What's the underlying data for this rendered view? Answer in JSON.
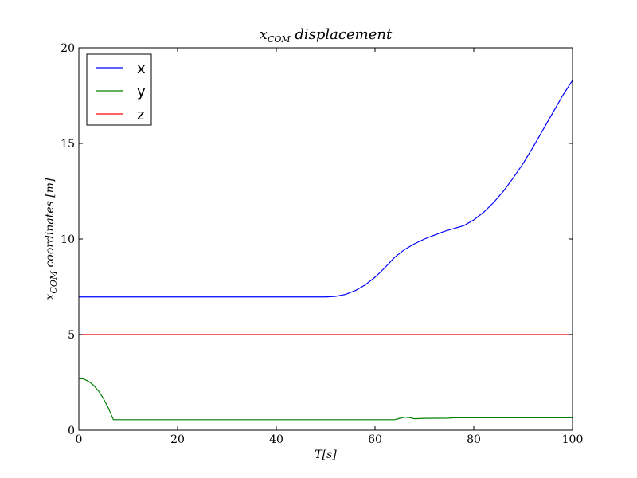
{
  "chart_data": {
    "type": "line",
    "title": {
      "main": "x",
      "subscript": "COM",
      "rest": " displacement"
    },
    "xlabel": "T[s]",
    "ylabel": {
      "main": "x",
      "subscript": "COM",
      "rest": " coordinates [m]"
    },
    "xlim": [
      0,
      100
    ],
    "ylim": [
      0,
      20
    ],
    "xticks": [
      0,
      20,
      40,
      60,
      80,
      100
    ],
    "yticks": [
      0,
      5,
      10,
      15,
      20
    ],
    "grid": false,
    "legend_position": "top-left",
    "series": [
      {
        "name": "x",
        "color": "#0000ff",
        "points": [
          [
            0,
            6.97
          ],
          [
            10,
            6.97
          ],
          [
            20,
            6.97
          ],
          [
            30,
            6.97
          ],
          [
            40,
            6.97
          ],
          [
            50,
            6.97
          ],
          [
            52,
            7.0
          ],
          [
            54,
            7.1
          ],
          [
            56,
            7.3
          ],
          [
            58,
            7.6
          ],
          [
            60,
            8.0
          ],
          [
            62,
            8.5
          ],
          [
            64,
            9.05
          ],
          [
            66,
            9.45
          ],
          [
            68,
            9.75
          ],
          [
            70,
            10.0
          ],
          [
            72,
            10.2
          ],
          [
            74,
            10.4
          ],
          [
            76,
            10.55
          ],
          [
            78,
            10.7
          ],
          [
            80,
            11.0
          ],
          [
            82,
            11.4
          ],
          [
            84,
            11.9
          ],
          [
            86,
            12.5
          ],
          [
            88,
            13.2
          ],
          [
            90,
            13.95
          ],
          [
            92,
            14.8
          ],
          [
            94,
            15.7
          ],
          [
            96,
            16.6
          ],
          [
            98,
            17.5
          ],
          [
            100,
            18.3
          ]
        ]
      },
      {
        "name": "y",
        "color": "#008000",
        "points": [
          [
            0,
            2.7
          ],
          [
            1,
            2.68
          ],
          [
            2,
            2.55
          ],
          [
            3,
            2.35
          ],
          [
            4,
            2.05
          ],
          [
            5,
            1.65
          ],
          [
            6,
            1.15
          ],
          [
            7,
            0.55
          ],
          [
            10,
            0.55
          ],
          [
            20,
            0.55
          ],
          [
            30,
            0.55
          ],
          [
            40,
            0.55
          ],
          [
            50,
            0.55
          ],
          [
            60,
            0.55
          ],
          [
            64,
            0.55
          ],
          [
            65,
            0.62
          ],
          [
            66,
            0.68
          ],
          [
            67,
            0.66
          ],
          [
            68,
            0.6
          ],
          [
            70,
            0.62
          ],
          [
            75,
            0.63
          ],
          [
            76,
            0.65
          ],
          [
            80,
            0.65
          ],
          [
            90,
            0.65
          ],
          [
            100,
            0.65
          ]
        ]
      },
      {
        "name": "z",
        "color": "#ff0000",
        "points": [
          [
            0,
            5.0
          ],
          [
            100,
            5.0
          ]
        ]
      }
    ]
  }
}
